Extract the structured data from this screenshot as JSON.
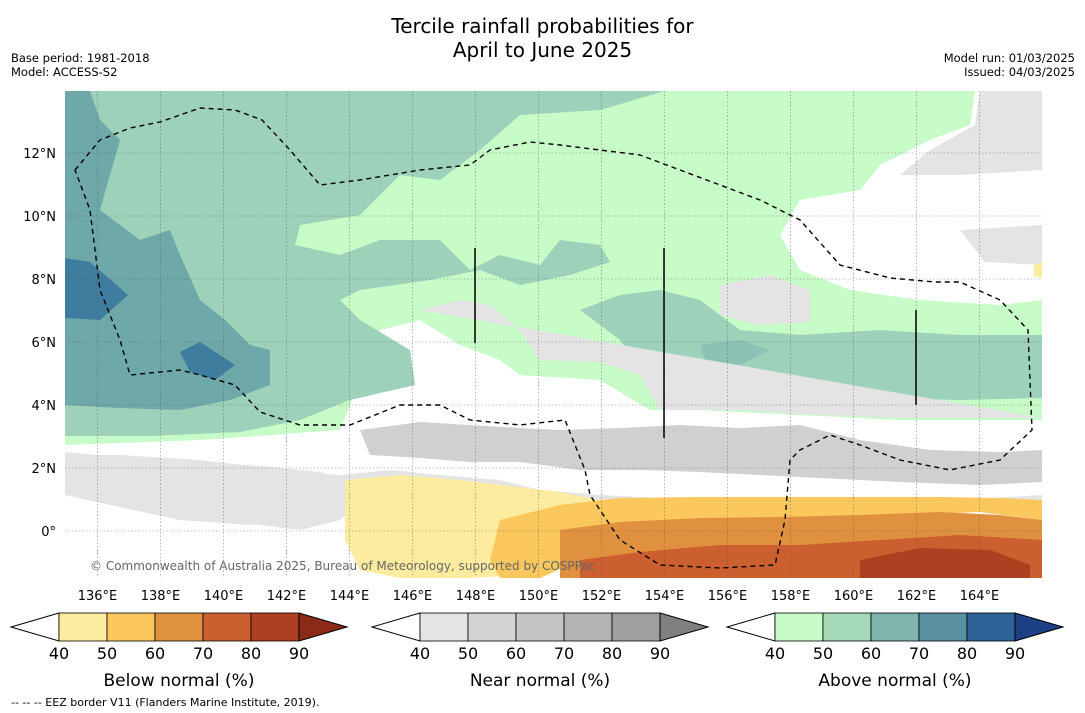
{
  "header": {
    "title_line1": "Tercile rainfall probabilities for",
    "title_line2": "April to June 2025",
    "base_period": "Base period: 1981-2018",
    "model": "Model: ACCESS-S2",
    "model_run": "Model run: 01/03/2025",
    "issued": "Issued: 04/03/2025"
  },
  "map": {
    "lon_ticks": [
      "136°E",
      "138°E",
      "140°E",
      "142°E",
      "144°E",
      "146°E",
      "148°E",
      "150°E",
      "152°E",
      "154°E",
      "156°E",
      "158°E",
      "160°E",
      "162°E",
      "164°E"
    ],
    "lat_ticks": [
      "12°N",
      "10°N",
      "8°N",
      "6°N",
      "4°N",
      "2°N",
      "0°"
    ],
    "copyright": "© Commonwealth of Australia 2025, Bureau of Meteorology, supported by COSPPac",
    "colors": {
      "below": [
        "#fdeca0",
        "#fcc75c",
        "#e0913f",
        "#cb5f2f",
        "#ad4020",
        "#8b2a17"
      ],
      "near": [
        "#e4e4e4",
        "#d3d3d3",
        "#c4c4c4",
        "#b3b3b3",
        "#9f9f9f",
        "#808080"
      ],
      "above": [
        "#c7fbc7",
        "#a6d9b8",
        "#7fb5ac",
        "#5a91a1",
        "#2e6196",
        "#1c3f86"
      ]
    }
  },
  "colorbars": [
    {
      "title": "Below normal (%)",
      "ticks": [
        "40",
        "50",
        "60",
        "70",
        "80",
        "90"
      ]
    },
    {
      "title": "Near normal (%)",
      "ticks": [
        "40",
        "50",
        "60",
        "70",
        "80",
        "90"
      ]
    },
    {
      "title": "Above normal (%)",
      "ticks": [
        "40",
        "50",
        "60",
        "70",
        "80",
        "90"
      ]
    }
  ],
  "footer": "--  --  -- EEZ border V11 (Flanders Marine Institute, 2019)."
}
